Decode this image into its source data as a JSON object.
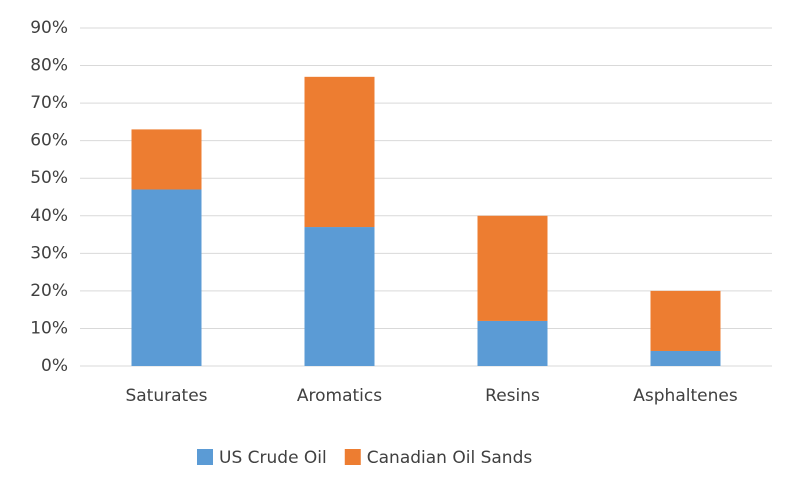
{
  "chart_data": {
    "type": "stacked_bar",
    "categories": [
      "Saturates",
      "Aromatics",
      "Resins",
      "Asphaltenes"
    ],
    "series": [
      {
        "name": "US Crude Oil",
        "color": "#5b9bd5",
        "values": [
          47,
          37,
          12,
          4
        ]
      },
      {
        "name": "Canadian Oil Sands",
        "color": "#ed7d31",
        "values": [
          16,
          40,
          28,
          16
        ]
      }
    ],
    "ylim": [
      0,
      90
    ],
    "yticks": [
      {
        "value": 0,
        "label": "0%"
      },
      {
        "value": 10,
        "label": "10%"
      },
      {
        "value": 20,
        "label": "20%"
      },
      {
        "value": 30,
        "label": "30%"
      },
      {
        "value": 40,
        "label": "40%"
      },
      {
        "value": 50,
        "label": "50%"
      },
      {
        "value": 60,
        "label": "60%"
      },
      {
        "value": 70,
        "label": "70%"
      },
      {
        "value": 80,
        "label": "80%"
      },
      {
        "value": 90,
        "label": "90%"
      }
    ],
    "grid": true,
    "legend": "bottom"
  }
}
